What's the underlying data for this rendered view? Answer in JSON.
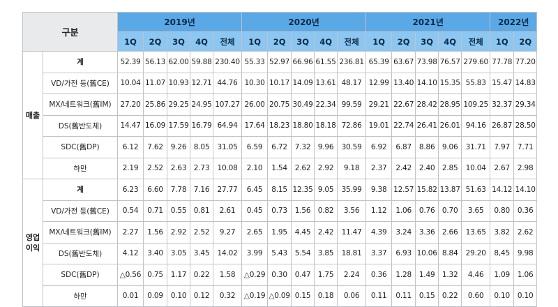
{
  "header": {
    "corner": "구분",
    "years": [
      {
        "label": "2019년",
        "span": 5
      },
      {
        "label": "2020년",
        "span": 5
      },
      {
        "label": "2021년",
        "span": 5
      },
      {
        "label": "2022년",
        "span": 2
      }
    ],
    "quarters": [
      "1Q",
      "2Q",
      "3Q",
      "4Q",
      "전체",
      "1Q",
      "2Q",
      "3Q",
      "4Q",
      "전체",
      "1Q",
      "2Q",
      "3Q",
      "4Q",
      "전체",
      "1Q",
      "2Q"
    ]
  },
  "sections": [
    {
      "category": "매출",
      "rows": [
        {
          "label": "계",
          "values": [
            "52.39",
            "56.13",
            "62.00",
            "59.88",
            "230.40",
            "55.33",
            "52.97",
            "66.96",
            "61.55",
            "236.81",
            "65.39",
            "63.67",
            "73.98",
            "76.57",
            "279.60",
            "77.78",
            "77.20"
          ]
        },
        {
          "label": "VD/가전 등(舊CE)",
          "values": [
            "10.04",
            "11.07",
            "10.93",
            "12.71",
            "44.76",
            "10.30",
            "10.17",
            "14.09",
            "13.61",
            "48.17",
            "12.99",
            "13.40",
            "14.10",
            "15.35",
            "55.83",
            "15.47",
            "14.83"
          ]
        },
        {
          "label": "MX/네트워크(舊IM)",
          "values": [
            "27.20",
            "25.86",
            "29.25",
            "24.95",
            "107.27",
            "26.00",
            "20.75",
            "30.49",
            "22.34",
            "99.59",
            "29.21",
            "22.67",
            "28.42",
            "28.95",
            "109.25",
            "32.37",
            "29.34"
          ]
        },
        {
          "label": "DS(舊반도체)",
          "values": [
            "14.47",
            "16.09",
            "17.59",
            "16.79",
            "64.94",
            "17.64",
            "18.23",
            "18.80",
            "18.18",
            "72.86",
            "19.01",
            "22.74",
            "26.41",
            "26.01",
            "94.16",
            "26.87",
            "28.50"
          ]
        },
        {
          "label": "SDC(舊DP)",
          "values": [
            "6.12",
            "7.62",
            "9.26",
            "8.05",
            "31.05",
            "6.59",
            "6.72",
            "7.32",
            "9.96",
            "30.59",
            "6.92",
            "6.87",
            "8.86",
            "9.06",
            "31.71",
            "7.97",
            "7.71"
          ]
        },
        {
          "label": "하만",
          "values": [
            "2.19",
            "2.52",
            "2.63",
            "2.73",
            "10.08",
            "2.10",
            "1.54",
            "2.62",
            "2.92",
            "9.18",
            "2.37",
            "2.42",
            "2.40",
            "2.85",
            "10.04",
            "2.67",
            "2.98"
          ]
        }
      ]
    },
    {
      "category": "영업\n이익",
      "rows": [
        {
          "label": "계",
          "values": [
            "6.23",
            "6.60",
            "7.78",
            "7.16",
            "27.77",
            "6.45",
            "8.15",
            "12.35",
            "9.05",
            "35.99",
            "9.38",
            "12.57",
            "15.82",
            "13.87",
            "51.63",
            "14.12",
            "14.10"
          ]
        },
        {
          "label": "VD/가전 등(舊CE)",
          "values": [
            "0.54",
            "0.71",
            "0.55",
            "0.81",
            "2.61",
            "0.45",
            "0.73",
            "1.56",
            "0.82",
            "3.56",
            "1.12",
            "1.06",
            "0.76",
            "0.70",
            "3.65",
            "0.80",
            "0.36"
          ]
        },
        {
          "label": "MX/네트워크(舊IM)",
          "values": [
            "2.27",
            "1.56",
            "2.92",
            "2.52",
            "9.27",
            "2.65",
            "1.95",
            "4.45",
            "2.42",
            "11.47",
            "4.39",
            "3.24",
            "3.36",
            "2.66",
            "13.65",
            "3.82",
            "2.62"
          ]
        },
        {
          "label": "DS(舊반도체)",
          "values": [
            "4.12",
            "3.40",
            "3.05",
            "3.45",
            "14.02",
            "3.99",
            "5.43",
            "5.54",
            "3.85",
            "18.81",
            "3.37",
            "6.93",
            "10.06",
            "8.84",
            "29.20",
            "8,45",
            "9.98"
          ]
        },
        {
          "label": "SDC(舊DP)",
          "values": [
            "△0.56",
            "0.75",
            "1.17",
            "0.22",
            "1.58",
            "△0.29",
            "0.30",
            "0.47",
            "1.75",
            "2.24",
            "0.36",
            "1.28",
            "1.49",
            "1.32",
            "4.46",
            "1.09",
            "1.06"
          ]
        },
        {
          "label": "하만",
          "values": [
            "0.01",
            "0.09",
            "0.10",
            "0.12",
            "0.32",
            "△0.19",
            "△0.09",
            "0.15",
            "0.18",
            "0.06",
            "0.11",
            "0.11",
            "0.15",
            "0.22",
            "0.60",
            "0.10",
            "0.10"
          ]
        }
      ]
    }
  ]
}
